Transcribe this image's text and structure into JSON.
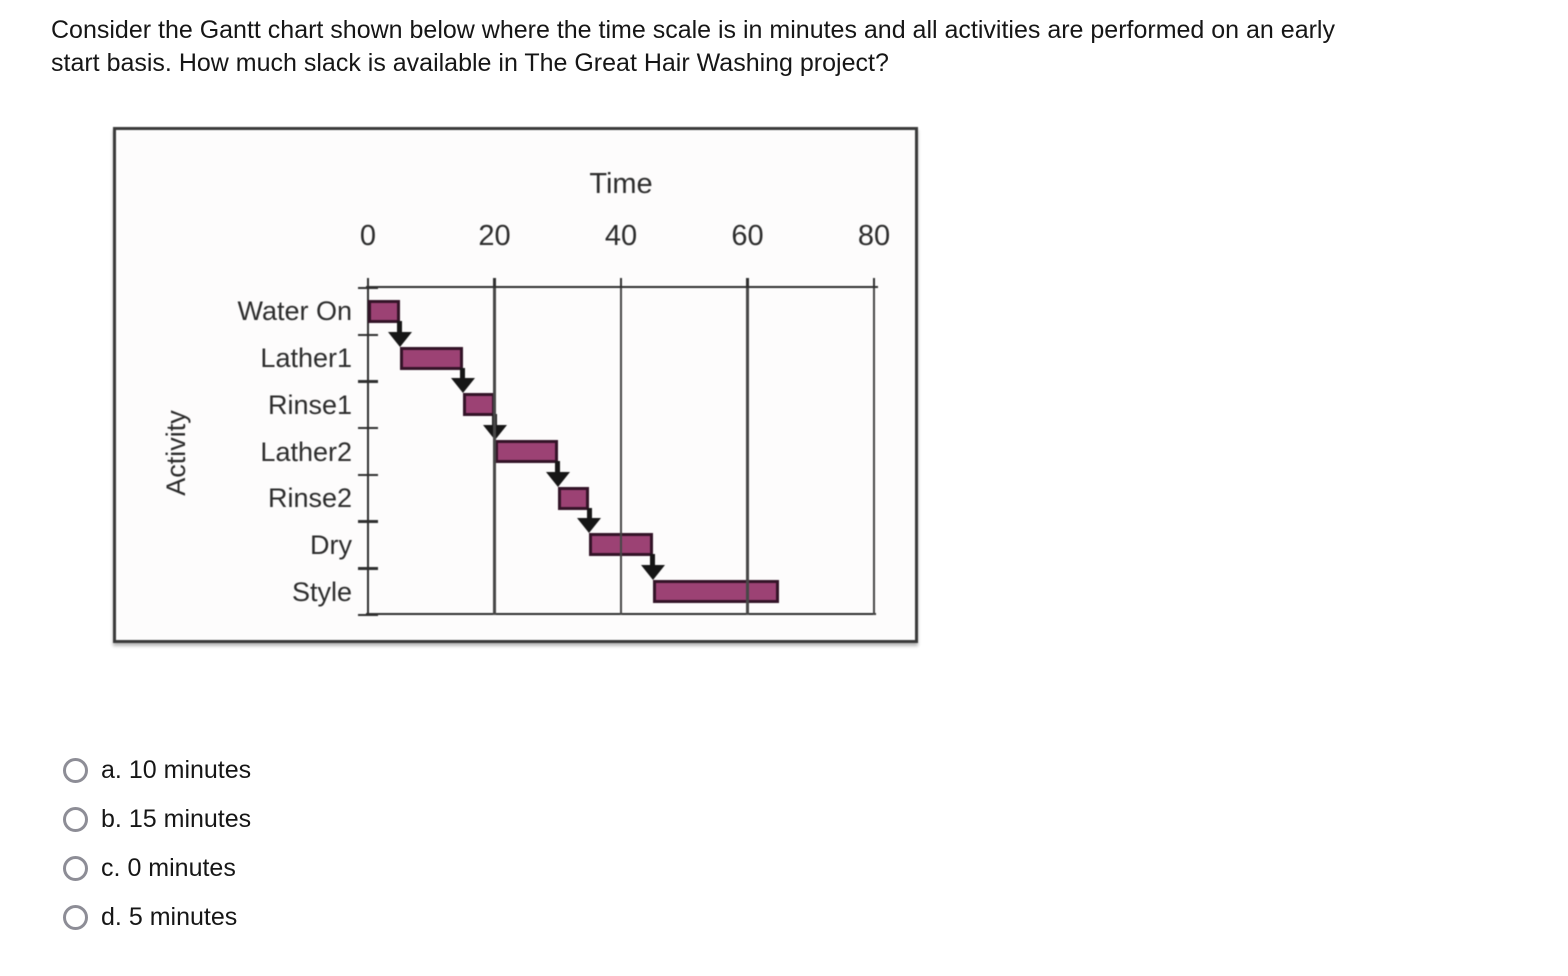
{
  "question": {
    "text": "Consider the Gantt chart shown below where the time scale is in minutes and all activities are performed on an early\nstart basis. How much slack is available in The Great Hair Washing project?"
  },
  "chart_data": {
    "type": "gantt",
    "title": "Time",
    "xlabel": "Time",
    "ylabel": "Activity",
    "time_unit": "minutes",
    "x_ticks": [
      0,
      20,
      40,
      60,
      80
    ],
    "xlim": [
      0,
      80
    ],
    "schedule_basis": "early start",
    "activities": [
      {
        "name": "Water On",
        "start": 0,
        "end": 5
      },
      {
        "name": "Lather1",
        "start": 5,
        "end": 15
      },
      {
        "name": "Rinse1",
        "start": 15,
        "end": 20
      },
      {
        "name": "Lather2",
        "start": 20,
        "end": 30
      },
      {
        "name": "Rinse2",
        "start": 30,
        "end": 35
      },
      {
        "name": "Dry",
        "start": 35,
        "end": 45
      },
      {
        "name": "Style",
        "start": 45,
        "end": 65
      }
    ],
    "dependencies": "finish-to-start arrows between each consecutive activity",
    "grid": "vertical lines at 20, 40, 60, 80 drawn over bars",
    "legend": "none",
    "colors": {
      "bar_fill": "#9c4274",
      "bar_border": "#331327",
      "arrow": "#161616",
      "axis": "#2f2f2f"
    }
  },
  "options": [
    {
      "key": "a.",
      "text": "10 minutes"
    },
    {
      "key": "b.",
      "text": "15 minutes"
    },
    {
      "key": "c.",
      "text": "0 minutes"
    },
    {
      "key": "d.",
      "text": "5 minutes"
    }
  ]
}
